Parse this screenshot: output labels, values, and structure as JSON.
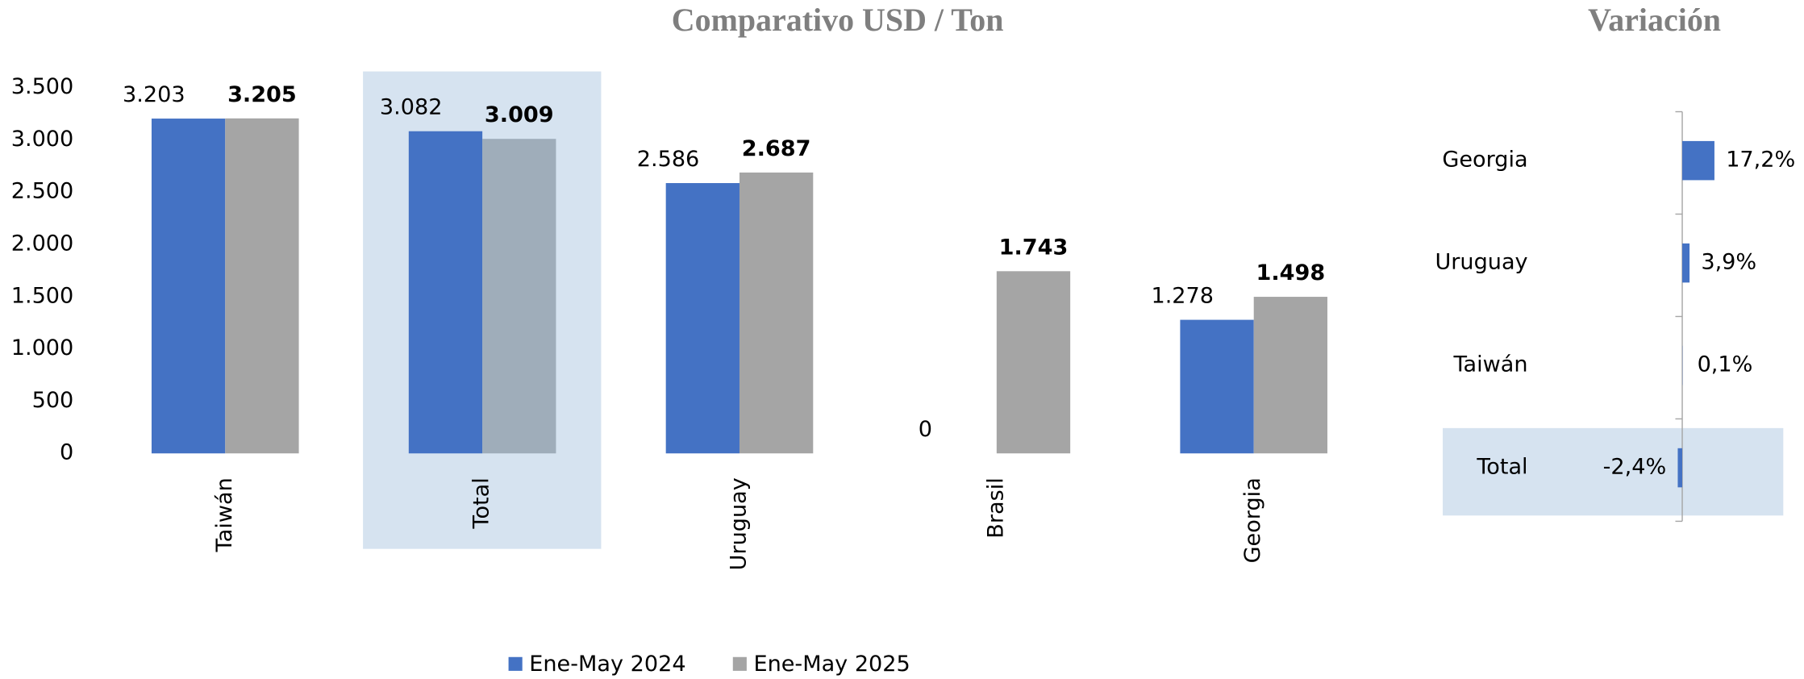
{
  "chart_data": [
    {
      "type": "bar",
      "title": "Comparativo USD / Ton",
      "categories": [
        "Taiwán",
        "Total",
        "Uruguay",
        "Brasil",
        "Georgia"
      ],
      "series": [
        {
          "name": "Ene-May 2024",
          "color": "#4472c4",
          "values": [
            3203,
            3082,
            2586,
            0,
            1278
          ],
          "value_labels": [
            "3.203",
            "3.082",
            "2.586",
            "0",
            "1.278"
          ]
        },
        {
          "name": "Ene-May 2025",
          "color": "#a5a5a5",
          "values": [
            3205,
            3009,
            2687,
            1743,
            1498
          ],
          "value_labels": [
            "3.205",
            "3.009",
            "2.687",
            "1.743",
            "1.498"
          ]
        }
      ],
      "ylim": [
        0,
        3500
      ],
      "yticks": [
        0,
        500,
        {
          "value": 1000,
          "label": "1.000"
        },
        {
          "value": 1500,
          "label": "1.500"
        },
        {
          "value": 2000,
          "label": "2.000"
        },
        {
          "value": 2500,
          "label": "2.500"
        },
        {
          "value": 3000,
          "label": "3.000"
        },
        {
          "value": 3500,
          "label": "3.500"
        }
      ],
      "highlight": "Total",
      "legend": "bottom"
    },
    {
      "type": "hbar",
      "title": "Variación",
      "categories": [
        "Georgia",
        "Uruguay",
        "Taiwán",
        "Total"
      ],
      "values": [
        17.2,
        3.9,
        0.1,
        -2.4
      ],
      "value_labels": [
        "17,2%",
        "3,9%",
        "0,1%",
        "-2,4%"
      ],
      "color": "#4472c4",
      "xlim": [
        -128,
        54
      ],
      "highlight": "Total"
    }
  ]
}
